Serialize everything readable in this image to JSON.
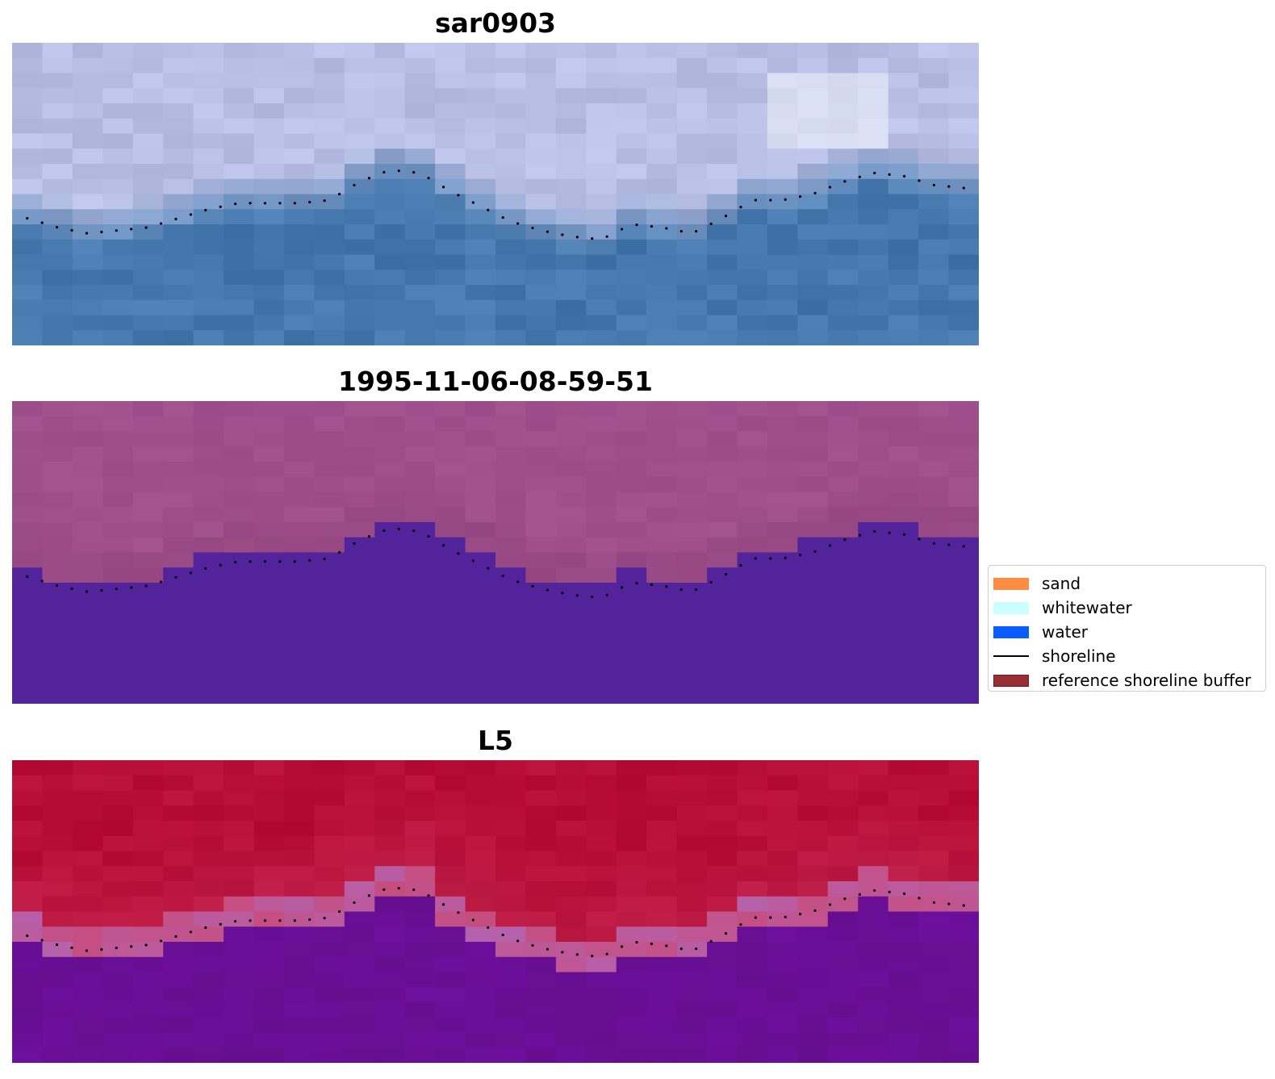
{
  "panels": [
    {
      "title": "sar0903",
      "style": "sar"
    },
    {
      "title": "1995-11-06-08-59-51",
      "style": "class"
    },
    {
      "title": "L5",
      "style": "ndwi"
    }
  ],
  "legend": {
    "items": [
      {
        "label": "sand",
        "color": "#ff8c42",
        "kind": "patch"
      },
      {
        "label": "whitewater",
        "color": "#ccffff",
        "kind": "patch"
      },
      {
        "label": "water",
        "color": "#0b5cff",
        "kind": "patch"
      },
      {
        "label": "shoreline",
        "color": "#000000",
        "kind": "line"
      },
      {
        "label": "reference shoreline buffer",
        "color": "#9a2c34",
        "edge": "#6e1e24",
        "kind": "patch"
      }
    ]
  },
  "shoreline_profile": [
    0.58,
    0.61,
    0.63,
    0.62,
    0.61,
    0.58,
    0.55,
    0.53,
    0.53,
    0.53,
    0.52,
    0.46,
    0.42,
    0.43,
    0.49,
    0.54,
    0.59,
    0.62,
    0.64,
    0.65,
    0.6,
    0.61,
    0.63,
    0.58,
    0.52,
    0.52,
    0.5,
    0.46,
    0.43,
    0.44,
    0.47,
    0.48
  ],
  "colors": {
    "sar_water": "#4579a8",
    "sar_land": "#b9bfde",
    "class_land": "#9a4b88",
    "class_water": "#53239b",
    "ndwi_land": "#b80d36",
    "ndwi_water": "#6d1596",
    "shoreline_dots": "#000000"
  }
}
